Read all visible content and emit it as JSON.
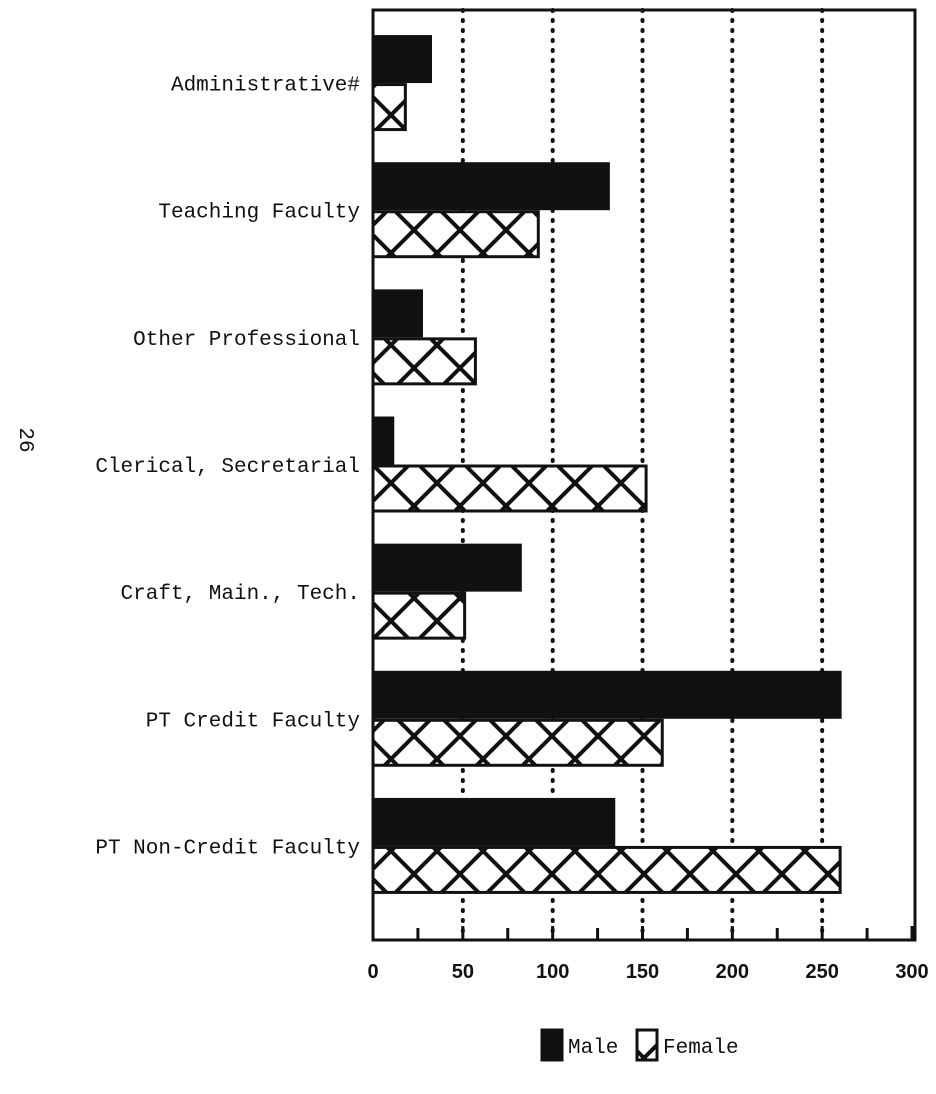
{
  "chart_data": {
    "type": "bar",
    "orientation": "horizontal",
    "page_number": "26",
    "categories": [
      "Administrative#",
      "Teaching Faculty",
      "Other Professional",
      "Clerical, Secretarial",
      "Craft, Main., Tech.",
      "PT Credit Faculty",
      "PT Non-Credit Faculty"
    ],
    "series": [
      {
        "name": "Male",
        "color": "#111111",
        "values": [
          32,
          131,
          27,
          11,
          82,
          260,
          134
        ]
      },
      {
        "name": "Female",
        "color": "#111111",
        "pattern": "crosshatch",
        "values": [
          18,
          92,
          57,
          152,
          51,
          161,
          260
        ]
      }
    ],
    "xlim": [
      0,
      300
    ],
    "xticks": [
      0,
      50,
      100,
      150,
      200,
      250,
      300
    ],
    "minor_xticks": [
      25,
      75,
      125,
      175,
      225,
      275
    ],
    "grid": true,
    "legend": "bottom"
  }
}
